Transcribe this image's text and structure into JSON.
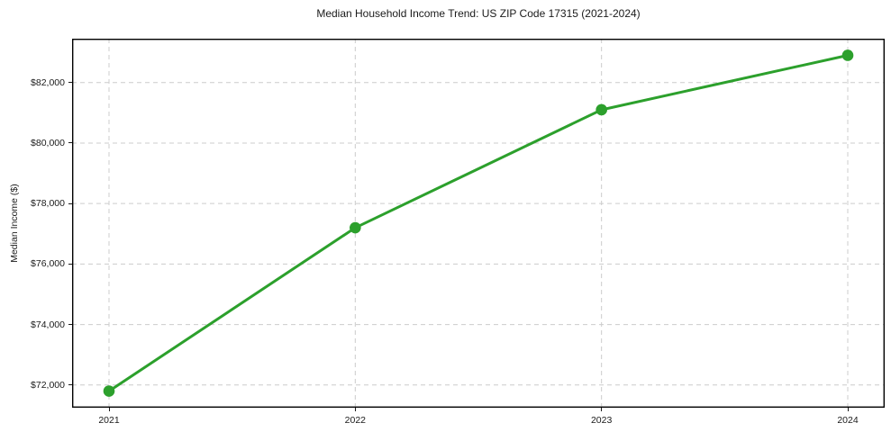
{
  "chart_data": {
    "type": "line",
    "title": "Median Household Income Trend: US ZIP Code 17315 (2021-2024)",
    "xlabel": "",
    "ylabel": "Median Income ($)",
    "x": [
      2021,
      2022,
      2023,
      2024
    ],
    "x_tick_labels": [
      "2021",
      "2022",
      "2023",
      "2024"
    ],
    "series": [
      {
        "name": "Median Household Income",
        "values": [
          71800,
          77200,
          81100,
          82900
        ]
      }
    ],
    "y_ticks": [
      {
        "value": 72000,
        "label": "$72,000"
      },
      {
        "value": 74000,
        "label": "$74,000"
      },
      {
        "value": 76000,
        "label": "$76,000"
      },
      {
        "value": 78000,
        "label": "$78,000"
      },
      {
        "value": 80000,
        "label": "$80,000"
      },
      {
        "value": 82000,
        "label": "$82,000"
      }
    ],
    "xlim": [
      2020.85,
      2024.15
    ],
    "ylim": [
      71250,
      83450
    ],
    "grid": true,
    "grid_style": "dashed",
    "legend": "none",
    "line_color": "#2ca02c",
    "marker": "circle",
    "grid_color": "#cccccc",
    "spine_color": "#000000",
    "text_color": "#1a1a1a",
    "background": "#ffffff"
  }
}
